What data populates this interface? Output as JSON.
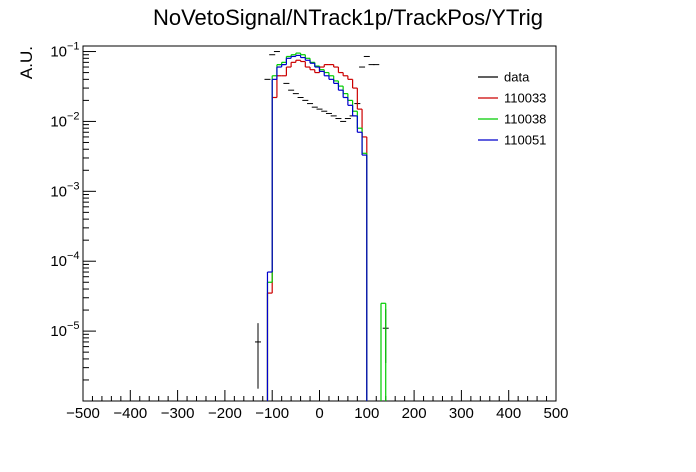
{
  "chart_data": {
    "type": "line",
    "title": "NoVetoSignal/NTrack1p/TrackPos/YTrig",
    "xlabel": "",
    "ylabel": "A.U.",
    "xlim": [
      -500,
      500
    ],
    "ylim": [
      1e-06,
      0.12
    ],
    "yscale": "log",
    "grid": false,
    "legend_position": "top-right",
    "x_ticks": [
      "−500",
      "−400",
      "−300",
      "−200",
      "−100",
      "0",
      "100",
      "200",
      "300",
      "400",
      "500"
    ],
    "y_ticks": [
      {
        "base": "10",
        "exp": "−1"
      },
      {
        "base": "10",
        "exp": "−2"
      },
      {
        "base": "10",
        "exp": "−3"
      },
      {
        "base": "10",
        "exp": "−4"
      },
      {
        "base": "10",
        "exp": "−5"
      }
    ],
    "series": [
      {
        "name": "data",
        "kind": "points",
        "color": "#000000",
        "x": [
          -130,
          -110,
          -100,
          -90,
          -80,
          -70,
          -60,
          -50,
          -40,
          -30,
          -20,
          -10,
          0,
          10,
          20,
          30,
          40,
          50,
          60,
          70,
          80,
          90,
          100,
          110,
          120,
          140
        ],
        "y": [
          7e-06,
          0.04,
          0.09,
          0.1,
          0.065,
          0.035,
          0.028,
          0.025,
          0.022,
          0.02,
          0.018,
          0.016,
          0.015,
          0.014,
          0.013,
          0.012,
          0.011,
          0.01,
          0.011,
          0.012,
          0.018,
          0.06,
          0.085,
          0.065,
          0.065,
          1.1e-05
        ],
        "yerr_low": [
          5.5e-06,
          0,
          0,
          0,
          0,
          0,
          0,
          0,
          0,
          0,
          0,
          0,
          0,
          0,
          0,
          0,
          0,
          0,
          0,
          0,
          0,
          0,
          0,
          0,
          0,
          7.5e-06
        ],
        "yerr_high": [
          6e-06,
          0,
          0,
          0,
          0,
          0,
          0,
          0,
          0,
          0,
          0,
          0,
          0,
          0,
          0,
          0,
          0,
          0,
          0,
          0,
          0,
          0,
          0,
          0,
          0,
          9.5e-06
        ]
      },
      {
        "name": "110033",
        "kind": "step",
        "color": "#cc0000",
        "edges": [
          -110,
          -100,
          -90,
          -80,
          -70,
          -60,
          -50,
          -40,
          -30,
          -20,
          -10,
          0,
          10,
          20,
          30,
          40,
          50,
          60,
          70,
          80,
          90,
          100
        ],
        "values": [
          3.5e-05,
          0.022,
          0.045,
          0.045,
          0.06,
          0.07,
          0.075,
          0.072,
          0.06,
          0.055,
          0.05,
          0.06,
          0.065,
          0.065,
          0.06,
          0.05,
          0.045,
          0.04,
          0.03,
          0.015,
          0.006
        ]
      },
      {
        "name": "110038",
        "kind": "step",
        "color": "#00cc00",
        "edges": [
          -110,
          -100,
          -90,
          -80,
          -70,
          -60,
          -50,
          -40,
          -30,
          -20,
          -10,
          0,
          10,
          20,
          30,
          40,
          50,
          60,
          70,
          80,
          90,
          100,
          130,
          140
        ],
        "values": [
          5e-05,
          0.045,
          0.065,
          0.07,
          0.085,
          0.09,
          0.095,
          0.09,
          0.08,
          0.07,
          0.062,
          0.055,
          0.05,
          0.045,
          0.038,
          0.032,
          0.025,
          0.02,
          0.014,
          0.008,
          0.0035,
          0,
          2.5e-05
        ]
      },
      {
        "name": "110051",
        "kind": "step",
        "color": "#0000cc",
        "edges": [
          -110,
          -100,
          -90,
          -80,
          -70,
          -60,
          -50,
          -40,
          -30,
          -20,
          -10,
          0,
          10,
          20,
          30,
          40,
          50,
          60,
          70,
          80,
          90,
          100
        ],
        "values": [
          7e-05,
          0.04,
          0.06,
          0.065,
          0.08,
          0.085,
          0.088,
          0.082,
          0.075,
          0.068,
          0.06,
          0.052,
          0.045,
          0.04,
          0.035,
          0.028,
          0.022,
          0.017,
          0.012,
          0.007,
          0.0033
        ]
      }
    ]
  }
}
